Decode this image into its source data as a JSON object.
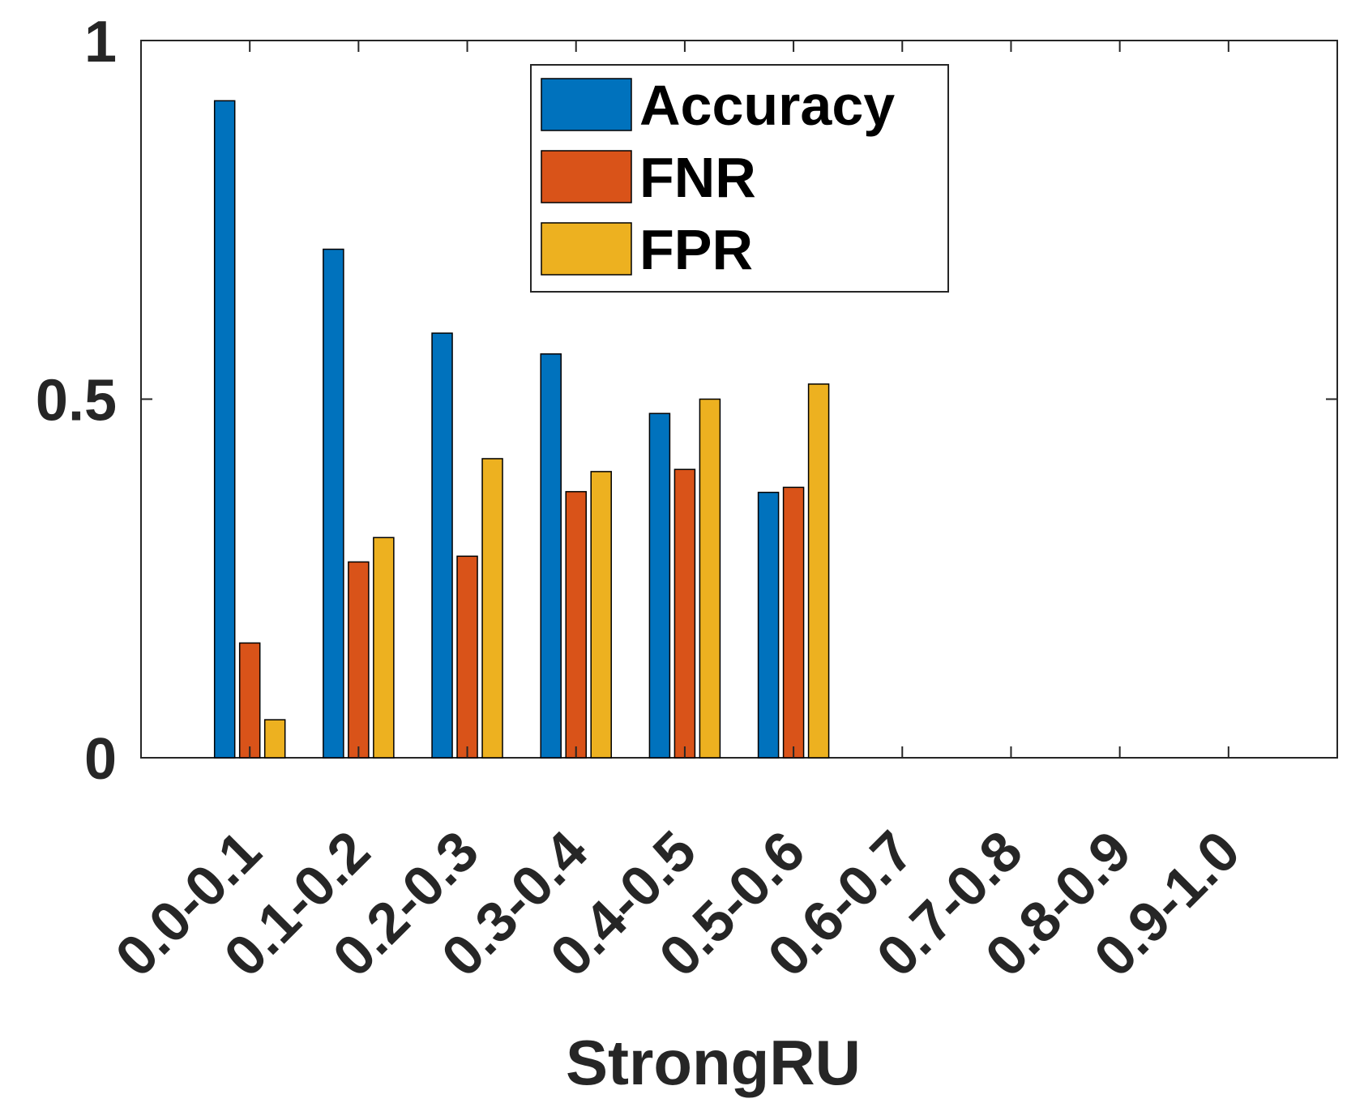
{
  "chart_data": {
    "type": "bar",
    "xlabel": "StrongRU",
    "ylabel": "",
    "ylim": [
      0,
      1
    ],
    "yticks": [
      0,
      0.5,
      1
    ],
    "ytick_labels": [
      "0",
      "0.5",
      "1"
    ],
    "categories": [
      "0.0-0.1",
      "0.1-0.2",
      "0.2-0.3",
      "0.3-0.4",
      "0.4-0.5",
      "0.5-0.6",
      "0.6-0.7",
      "0.7-0.8",
      "0.8-0.9",
      "0.9-1.0"
    ],
    "series": [
      {
        "name": "Accuracy",
        "color": "#0072BD",
        "values": [
          0.916,
          0.709,
          0.592,
          0.563,
          0.48,
          0.37,
          null,
          null,
          null,
          null
        ]
      },
      {
        "name": "FNR",
        "color": "#D95319",
        "values": [
          0.16,
          0.273,
          0.281,
          0.371,
          0.402,
          0.377,
          null,
          null,
          null,
          null
        ]
      },
      {
        "name": "FPR",
        "color": "#EDB120",
        "values": [
          0.053,
          0.307,
          0.417,
          0.399,
          0.5,
          0.521,
          null,
          null,
          null,
          null
        ]
      }
    ],
    "legend_position": "top-center",
    "grid": false
  }
}
